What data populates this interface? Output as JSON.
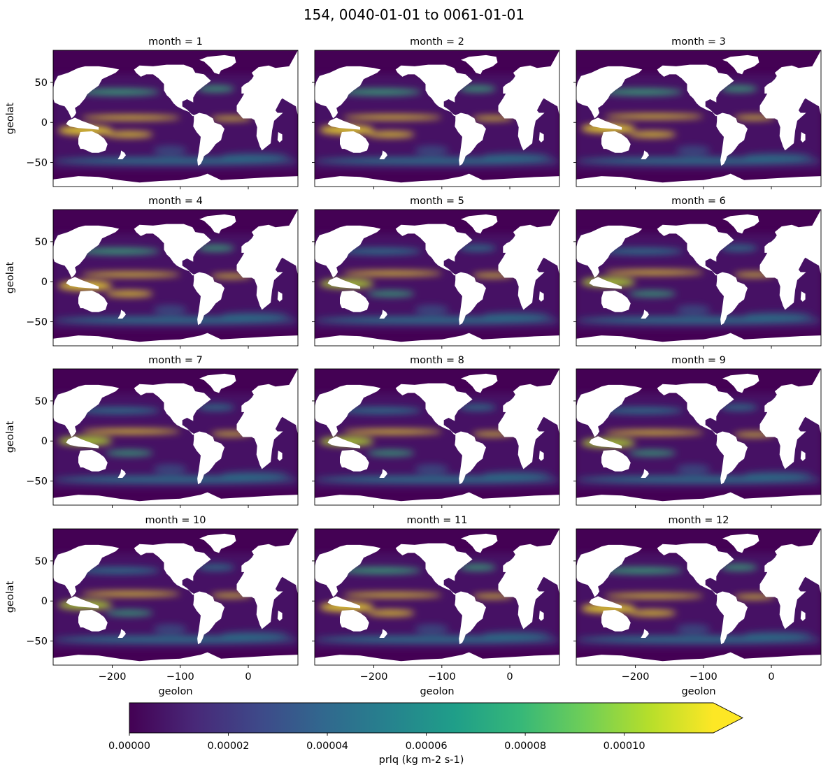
{
  "figure": {
    "title": "154, 0040-01-01 to 0061-01-01"
  },
  "chart_data": {
    "type": "heatmap",
    "title": "154, 0040-01-01 to 0061-01-01",
    "facet_variable": "month",
    "panels": [
      {
        "month": 1,
        "label": "month = 1"
      },
      {
        "month": 2,
        "label": "month = 2"
      },
      {
        "month": 3,
        "label": "month = 3"
      },
      {
        "month": 4,
        "label": "month = 4"
      },
      {
        "month": 5,
        "label": "month = 5"
      },
      {
        "month": 6,
        "label": "month = 6"
      },
      {
        "month": 7,
        "label": "month = 7"
      },
      {
        "month": 8,
        "label": "month = 8"
      },
      {
        "month": 9,
        "label": "month = 9"
      },
      {
        "month": 10,
        "label": "month = 10"
      },
      {
        "month": 11,
        "label": "month = 11"
      },
      {
        "month": 12,
        "label": "month = 12"
      }
    ],
    "xlabel": "geolon",
    "ylabel": "geolat",
    "xlim": [
      -287,
      73
    ],
    "ylim": [
      -80,
      90
    ],
    "xticks": [
      -200,
      -100,
      0
    ],
    "xtick_labels": [
      "−200",
      "−100",
      "0"
    ],
    "yticks": [
      50,
      0,
      -50
    ],
    "ytick_labels": [
      "50",
      "0",
      "−50"
    ],
    "colorbar": {
      "label": "prlq (kg m-2 s-1)",
      "vmin": 0.0,
      "vmax": 0.000118,
      "extend": "max",
      "ticks": [
        0.0,
        2e-05,
        4e-05,
        6e-05,
        8e-05,
        0.0001
      ],
      "tick_labels": [
        "0.00000",
        "0.00002",
        "0.00004",
        "0.00006",
        "0.00008",
        "0.00010"
      ],
      "colormap": "viridis",
      "colors": [
        "#440154",
        "#482878",
        "#3e4989",
        "#31688e",
        "#26828e",
        "#1f9e89",
        "#35b779",
        "#6ece58",
        "#b5de2b",
        "#fde725"
      ]
    },
    "land_color": "#ffffff"
  }
}
